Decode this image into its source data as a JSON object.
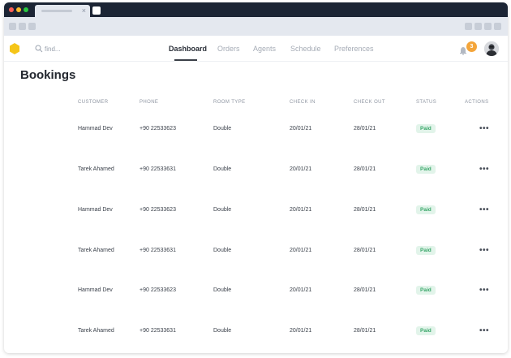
{
  "browser": {
    "tab_close": "×",
    "traffic_lights": [
      "#fc5f57",
      "#fdbc2e",
      "#28c840"
    ]
  },
  "app": {
    "logo_icon": "hexagon-logo",
    "logo_color": "#f5c518",
    "search": {
      "placeholder": "find..."
    },
    "nav": {
      "items": [
        {
          "label": "Dashboard",
          "active": true
        },
        {
          "label": "Orders",
          "active": false
        },
        {
          "label": "Agents",
          "active": false
        },
        {
          "label": "Schedule",
          "active": false
        },
        {
          "label": "Preferences",
          "active": false
        }
      ]
    },
    "notifications": {
      "count": "3",
      "badge_color": "#f4a53a"
    }
  },
  "page": {
    "title": "Bookings",
    "table": {
      "columns": [
        "CUSTOMER",
        "PHONE",
        "ROOM TYPE",
        "CHECK IN",
        "CHECK OUT",
        "STATUS",
        "ACTIONS"
      ],
      "rows": [
        {
          "customer": "Hammad Dev",
          "phone": "+90 22533623",
          "room": "Double",
          "check_in": "20/01/21",
          "check_out": "28/01/21",
          "status": "Paid",
          "actions": "•••"
        },
        {
          "customer": "Tarek Ahamed",
          "phone": "+90 22533631",
          "room": "Double",
          "check_in": "20/01/21",
          "check_out": "28/01/21",
          "status": "Paid",
          "actions": "•••"
        },
        {
          "customer": "Hammad Dev",
          "phone": "+90 22533623",
          "room": "Double",
          "check_in": "20/01/21",
          "check_out": "28/01/21",
          "status": "Paid",
          "actions": "•••"
        },
        {
          "customer": "Tarek Ahamed",
          "phone": "+90 22533631",
          "room": "Double",
          "check_in": "20/01/21",
          "check_out": "28/01/21",
          "status": "Paid",
          "actions": "•••"
        },
        {
          "customer": "Hammad Dev",
          "phone": "+90 22533623",
          "room": "Double",
          "check_in": "20/01/21",
          "check_out": "28/01/21",
          "status": "Paid",
          "actions": "•••"
        },
        {
          "customer": "Tarek Ahamed",
          "phone": "+90 22533631",
          "room": "Double",
          "check_in": "20/01/21",
          "check_out": "28/01/21",
          "status": "Paid",
          "actions": "•••"
        }
      ]
    },
    "status_colors": {
      "paid_bg": "#e2f4ea",
      "paid_text": "#3aa76a"
    }
  }
}
